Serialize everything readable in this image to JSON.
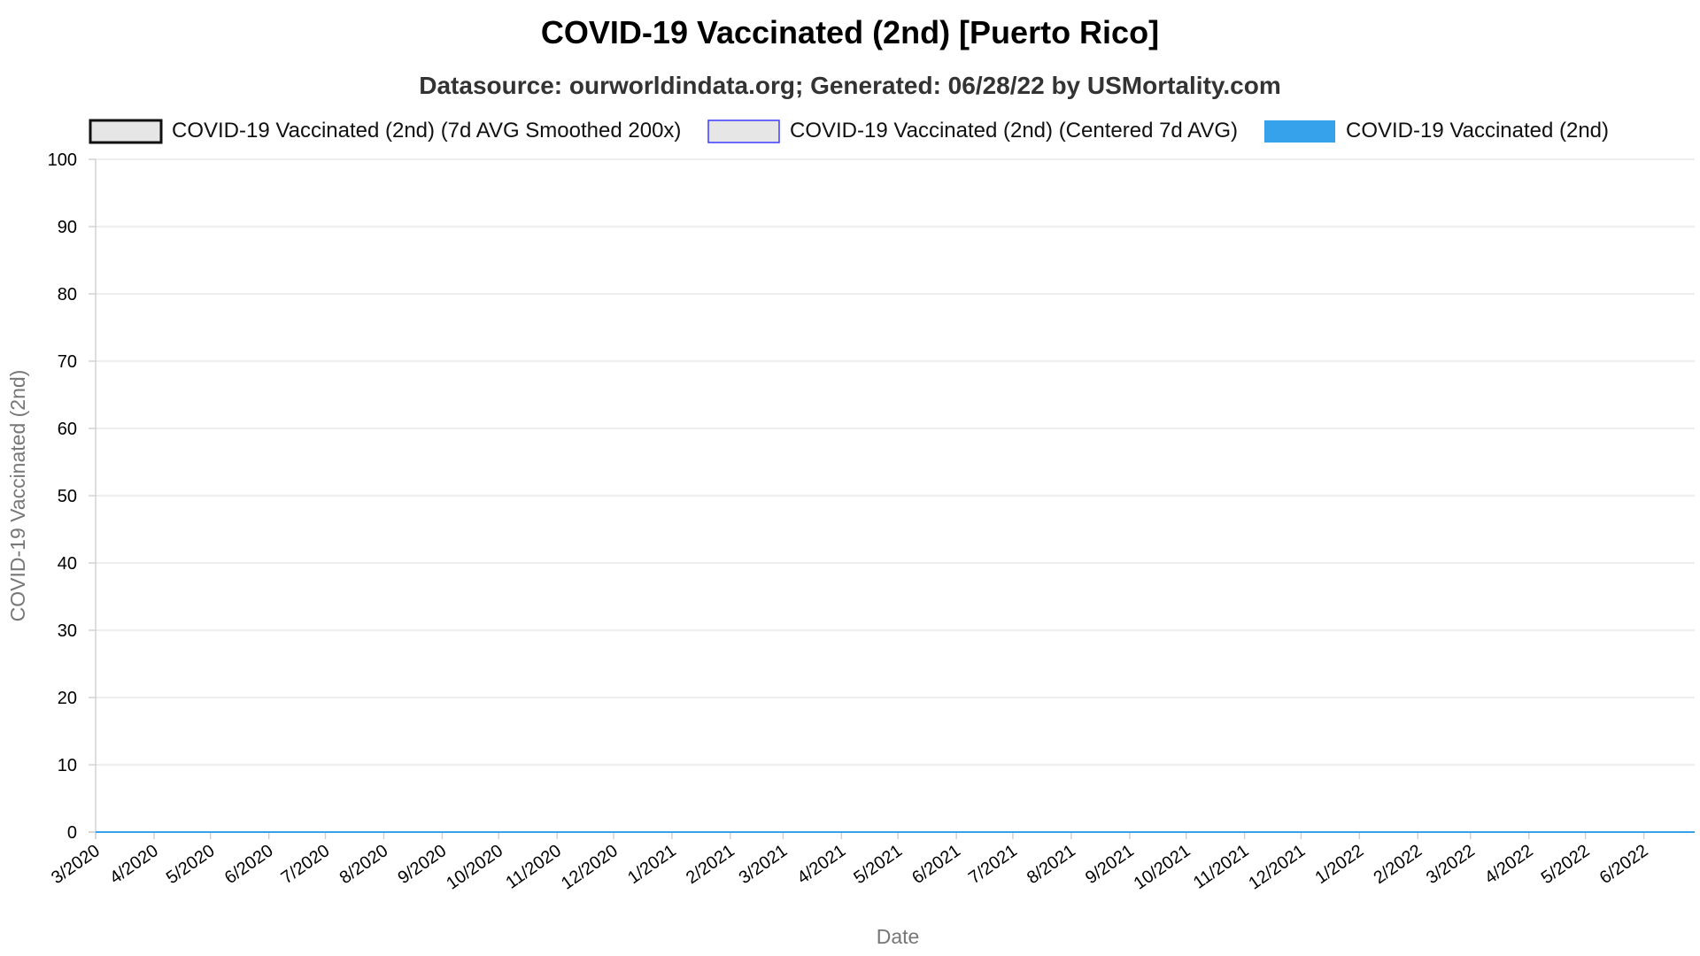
{
  "chart_data": {
    "type": "line",
    "title": "COVID-19 Vaccinated (2nd) [Puerto Rico]",
    "subtitle": "Datasource: ourworldindata.org; Generated: 06/28/22 by USMortality.com",
    "xlabel": "Date",
    "ylabel": "COVID-19 Vaccinated (2nd)",
    "ylim": [
      0,
      100
    ],
    "yticks": [
      0,
      10,
      20,
      30,
      40,
      50,
      60,
      70,
      80,
      90,
      100
    ],
    "xlim": [
      "2020-03-01",
      "2022-06-28"
    ],
    "x_tick_dates": [
      "2020-03-01",
      "2020-04-01",
      "2020-05-01",
      "2020-06-01",
      "2020-07-01",
      "2020-08-01",
      "2020-09-01",
      "2020-10-01",
      "2020-11-01",
      "2020-12-01",
      "2021-01-01",
      "2021-02-01",
      "2021-03-01",
      "2021-04-01",
      "2021-05-01",
      "2021-06-01",
      "2021-07-01",
      "2021-08-01",
      "2021-09-01",
      "2021-10-01",
      "2021-11-01",
      "2021-12-01",
      "2022-01-01",
      "2022-02-01",
      "2022-03-01",
      "2022-04-01",
      "2022-05-01",
      "2022-06-01"
    ],
    "x_tick_labels": [
      "3/2020",
      "4/2020",
      "5/2020",
      "6/2020",
      "7/2020",
      "8/2020",
      "9/2020",
      "10/2020",
      "11/2020",
      "12/2020",
      "1/2021",
      "2/2021",
      "3/2021",
      "4/2021",
      "5/2021",
      "6/2021",
      "7/2021",
      "8/2021",
      "9/2021",
      "10/2021",
      "11/2021",
      "12/2021",
      "1/2022",
      "2/2022",
      "3/2022",
      "4/2022",
      "5/2022",
      "6/2022"
    ],
    "grid": true,
    "legend_position": "top",
    "series": [
      {
        "name": "COVID-19 Vaccinated (2nd) (7d AVG Smoothed 200x)",
        "legend_fill": "#e6e6e6",
        "color": "#111111",
        "points": []
      },
      {
        "name": "COVID-19 Vaccinated (2nd) (Centered 7d AVG)",
        "legend_fill": "#e6e6e6",
        "color": "#3b3bff",
        "points": []
      },
      {
        "name": "COVID-19 Vaccinated (2nd)",
        "legend_fill": "#36a2eb",
        "color": "#36a2eb",
        "points": [
          [
            "2020-03-01",
            0
          ],
          [
            "2022-06-28",
            0
          ]
        ]
      }
    ]
  }
}
